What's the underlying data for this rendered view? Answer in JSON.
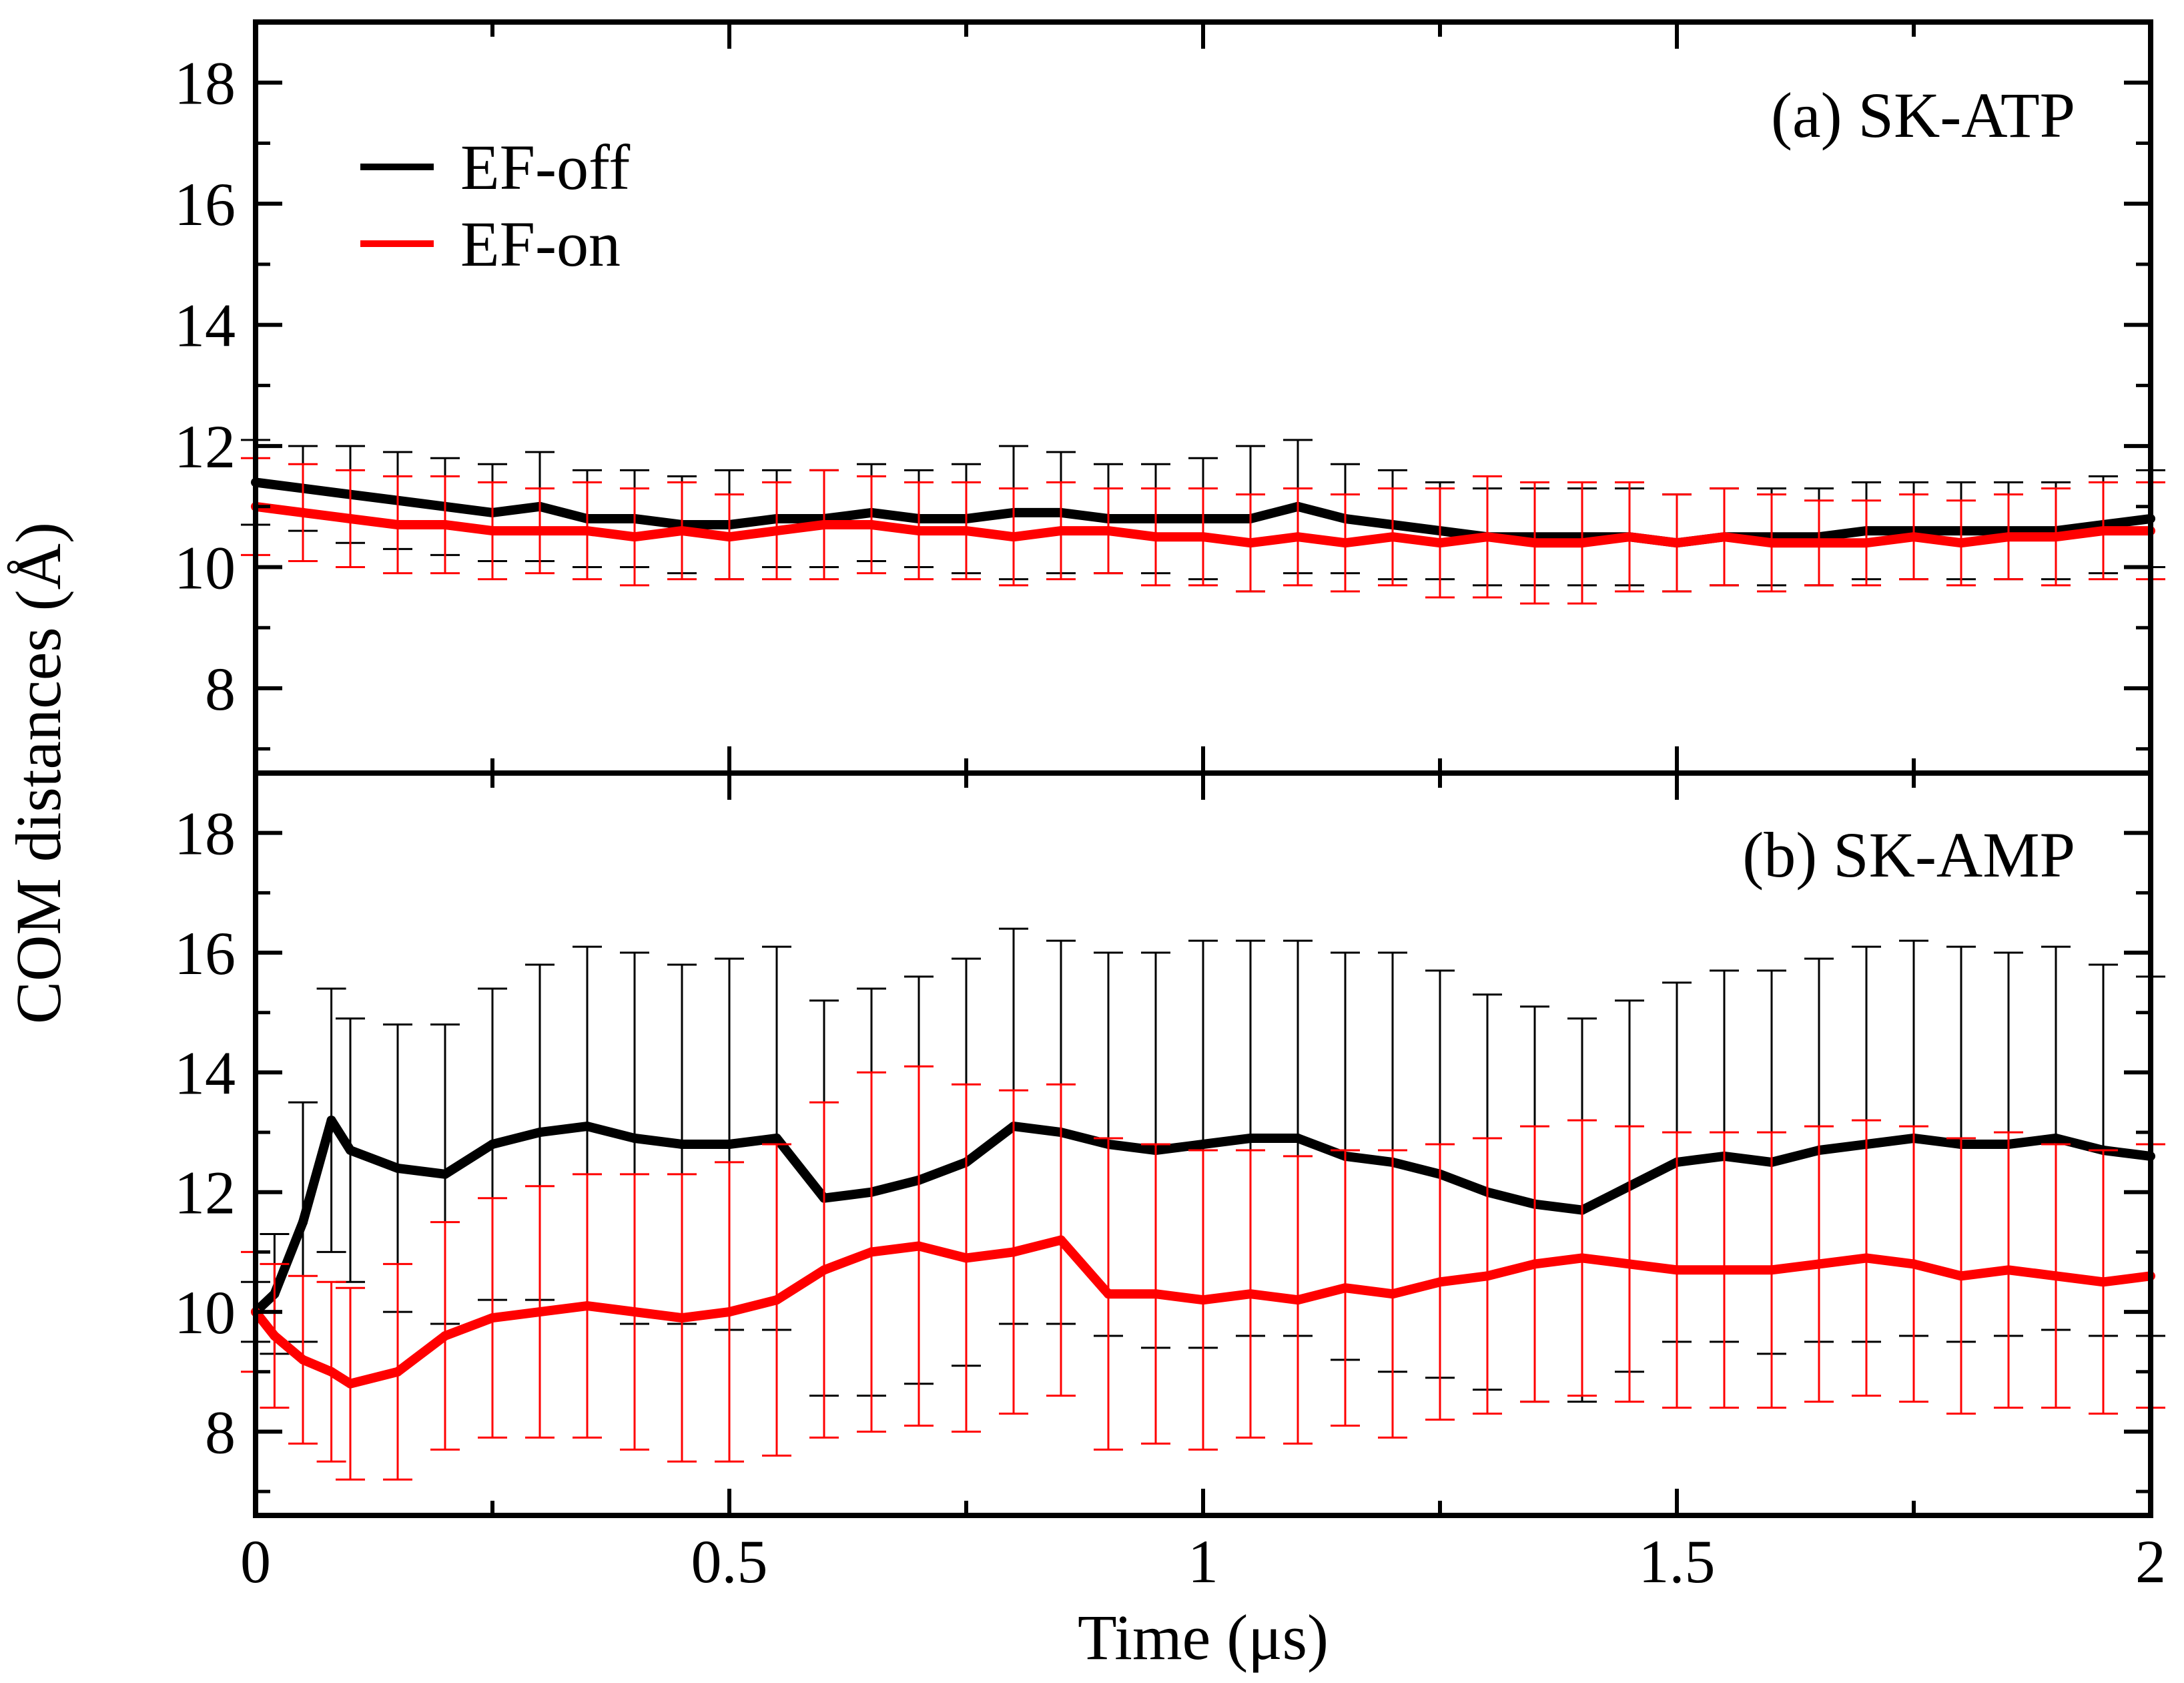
{
  "chart_data": {
    "type": "line",
    "xlabel": "Time (μs)",
    "ylabel": "COM distances (Å)",
    "xlim": [
      0,
      2
    ],
    "x_ticks": [
      "0",
      "0.5",
      "1",
      "1.5",
      "2"
    ],
    "grid": false,
    "legend": {
      "location": "top-left of panel (a)",
      "entries": [
        {
          "name": "EF-off",
          "color": "#000000"
        },
        {
          "name": "EF-on",
          "color": "#ff0000"
        }
      ]
    },
    "panels": [
      {
        "label": "(a) SK-ATP",
        "ylim": [
          6.6,
          19
        ],
        "y_ticks": [
          "8",
          "10",
          "12",
          "14",
          "16",
          "18"
        ],
        "series": [
          {
            "name": "EF-off",
            "color": "#000000",
            "x": [
              0,
              0.05,
              0.1,
              0.15,
              0.2,
              0.25,
              0.3,
              0.35,
              0.4,
              0.45,
              0.5,
              0.55,
              0.6,
              0.65,
              0.7,
              0.75,
              0.8,
              0.85,
              0.9,
              0.95,
              1.0,
              1.05,
              1.1,
              1.15,
              1.2,
              1.25,
              1.3,
              1.35,
              1.4,
              1.45,
              1.5,
              1.55,
              1.6,
              1.65,
              1.7,
              1.75,
              1.8,
              1.85,
              1.9,
              1.95,
              2.0
            ],
            "values": [
              11.4,
              11.3,
              11.2,
              11.1,
              11.0,
              10.9,
              11.0,
              10.8,
              10.8,
              10.7,
              10.7,
              10.8,
              10.8,
              10.9,
              10.8,
              10.8,
              10.9,
              10.9,
              10.8,
              10.8,
              10.8,
              10.8,
              11.0,
              10.8,
              10.7,
              10.6,
              10.5,
              10.5,
              10.5,
              10.5,
              10.4,
              10.5,
              10.5,
              10.5,
              10.6,
              10.6,
              10.6,
              10.6,
              10.6,
              10.7,
              10.8
            ],
            "error": [
              0.7,
              0.7,
              0.8,
              0.8,
              0.8,
              0.8,
              0.9,
              0.8,
              0.8,
              0.8,
              0.9,
              0.8,
              0.8,
              0.8,
              0.8,
              0.9,
              1.1,
              1.0,
              0.9,
              0.9,
              1.0,
              1.2,
              1.1,
              0.9,
              0.9,
              0.8,
              0.8,
              0.8,
              0.8,
              0.8,
              0.8,
              0.8,
              0.8,
              0.8,
              0.8,
              0.8,
              0.8,
              0.8,
              0.8,
              0.8,
              0.8
            ]
          },
          {
            "name": "EF-on",
            "color": "#ff0000",
            "x": [
              0,
              0.05,
              0.1,
              0.15,
              0.2,
              0.25,
              0.3,
              0.35,
              0.4,
              0.45,
              0.5,
              0.55,
              0.6,
              0.65,
              0.7,
              0.75,
              0.8,
              0.85,
              0.9,
              0.95,
              1.0,
              1.05,
              1.1,
              1.15,
              1.2,
              1.25,
              1.3,
              1.35,
              1.4,
              1.45,
              1.5,
              1.55,
              1.6,
              1.65,
              1.7,
              1.75,
              1.8,
              1.85,
              1.9,
              1.95,
              2.0
            ],
            "values": [
              11.0,
              10.9,
              10.8,
              10.7,
              10.7,
              10.6,
              10.6,
              10.6,
              10.5,
              10.6,
              10.5,
              10.6,
              10.7,
              10.7,
              10.6,
              10.6,
              10.5,
              10.6,
              10.6,
              10.5,
              10.5,
              10.4,
              10.5,
              10.4,
              10.5,
              10.4,
              10.5,
              10.4,
              10.4,
              10.5,
              10.4,
              10.5,
              10.4,
              10.4,
              10.4,
              10.5,
              10.4,
              10.5,
              10.5,
              10.6,
              10.6
            ],
            "error": [
              0.8,
              0.8,
              0.8,
              0.8,
              0.8,
              0.8,
              0.7,
              0.8,
              0.8,
              0.8,
              0.7,
              0.8,
              0.9,
              0.8,
              0.8,
              0.8,
              0.8,
              0.8,
              0.7,
              0.8,
              0.8,
              0.8,
              0.8,
              0.8,
              0.8,
              0.9,
              1.0,
              1.0,
              1.0,
              0.9,
              0.8,
              0.8,
              0.8,
              0.7,
              0.7,
              0.7,
              0.7,
              0.7,
              0.8,
              0.8,
              0.8
            ]
          }
        ]
      },
      {
        "label": "(b) SK-AMP",
        "ylim": [
          6.6,
          19
        ],
        "y_ticks": [
          "8",
          "10",
          "12",
          "14",
          "16",
          "18"
        ],
        "series": [
          {
            "name": "EF-off",
            "color": "#000000",
            "x": [
              0,
              0.02,
              0.05,
              0.08,
              0.1,
              0.15,
              0.2,
              0.25,
              0.3,
              0.35,
              0.4,
              0.45,
              0.5,
              0.55,
              0.6,
              0.65,
              0.7,
              0.75,
              0.8,
              0.85,
              0.9,
              0.95,
              1.0,
              1.05,
              1.1,
              1.15,
              1.2,
              1.25,
              1.3,
              1.35,
              1.4,
              1.45,
              1.5,
              1.55,
              1.6,
              1.65,
              1.7,
              1.75,
              1.8,
              1.85,
              1.9,
              1.95,
              2.0
            ],
            "values": [
              10.0,
              10.3,
              11.5,
              13.2,
              12.7,
              12.4,
              12.3,
              12.8,
              13.0,
              13.1,
              12.9,
              12.8,
              12.8,
              12.9,
              11.9,
              12.0,
              12.2,
              12.5,
              13.1,
              13.0,
              12.8,
              12.7,
              12.8,
              12.9,
              12.9,
              12.6,
              12.5,
              12.3,
              12.0,
              11.8,
              11.7,
              12.1,
              12.5,
              12.6,
              12.5,
              12.7,
              12.8,
              12.9,
              12.8,
              12.8,
              12.9,
              12.7,
              12.6
            ],
            "error": [
              0.5,
              1.0,
              2.0,
              2.2,
              2.2,
              2.4,
              2.5,
              2.6,
              2.8,
              3.0,
              3.1,
              3.0,
              3.1,
              3.2,
              3.3,
              3.4,
              3.4,
              3.4,
              3.3,
              3.2,
              3.2,
              3.3,
              3.4,
              3.3,
              3.3,
              3.4,
              3.5,
              3.4,
              3.3,
              3.3,
              3.2,
              3.1,
              3.0,
              3.1,
              3.2,
              3.2,
              3.3,
              3.3,
              3.3,
              3.2,
              3.2,
              3.1,
              3.0
            ]
          },
          {
            "name": "EF-on",
            "color": "#ff0000",
            "x": [
              0,
              0.02,
              0.05,
              0.08,
              0.1,
              0.15,
              0.2,
              0.25,
              0.3,
              0.35,
              0.4,
              0.45,
              0.5,
              0.55,
              0.6,
              0.65,
              0.7,
              0.75,
              0.8,
              0.85,
              0.9,
              0.95,
              1.0,
              1.05,
              1.1,
              1.15,
              1.2,
              1.25,
              1.3,
              1.35,
              1.4,
              1.45,
              1.5,
              1.55,
              1.6,
              1.65,
              1.7,
              1.75,
              1.8,
              1.85,
              1.9,
              1.95,
              2.0
            ],
            "values": [
              10.0,
              9.6,
              9.2,
              9.0,
              8.8,
              9.0,
              9.6,
              9.9,
              10.0,
              10.1,
              10.0,
              9.9,
              10.0,
              10.2,
              10.7,
              11.0,
              11.1,
              10.9,
              11.0,
              11.2,
              10.3,
              10.3,
              10.2,
              10.3,
              10.2,
              10.4,
              10.3,
              10.5,
              10.6,
              10.8,
              10.9,
              10.8,
              10.7,
              10.7,
              10.7,
              10.8,
              10.9,
              10.8,
              10.6,
              10.7,
              10.6,
              10.5,
              10.6
            ],
            "error": [
              1.0,
              1.2,
              1.4,
              1.5,
              1.6,
              1.8,
              1.9,
              2.0,
              2.1,
              2.2,
              2.3,
              2.4,
              2.5,
              2.6,
              2.8,
              3.0,
              3.0,
              2.9,
              2.7,
              2.6,
              2.6,
              2.5,
              2.5,
              2.4,
              2.4,
              2.3,
              2.4,
              2.3,
              2.3,
              2.3,
              2.3,
              2.3,
              2.3,
              2.3,
              2.3,
              2.3,
              2.3,
              2.3,
              2.3,
              2.3,
              2.2,
              2.2,
              2.2
            ]
          }
        ]
      }
    ]
  }
}
